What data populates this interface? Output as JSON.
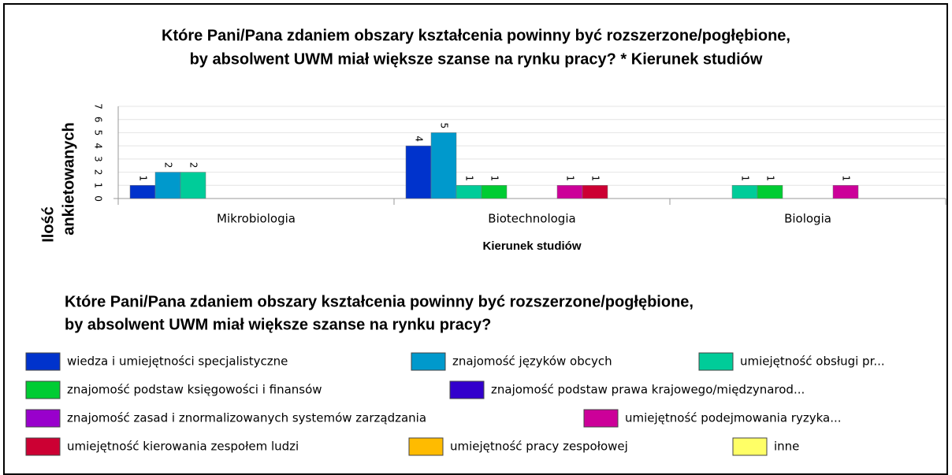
{
  "chart_data": {
    "type": "bar",
    "title": [
      "Które Pani/Pana zdaniem obszary kształcenia powinny być rozszerzone/pogłębione,",
      "by absolwent UWM miał większe szanse na rynku pracy? * Kierunek studiów"
    ],
    "y_label": [
      "Ilość",
      "ankietowanych"
    ],
    "x_label": "Kierunek studiów",
    "legend_title": [
      "Które Pani/Pana zdaniem obszary kształcenia powinny być rozszerzone/pogłębione,",
      "by absolwent UWM miał większe szanse na rynku pracy?"
    ],
    "categories": [
      "Mikrobiologia",
      "Biotechnologia",
      "Biologia"
    ],
    "series": [
      {
        "name": "wiedza i umiejętności specjalistyczne",
        "color": "#0033cc",
        "values": [
          1,
          4,
          0
        ]
      },
      {
        "name": "znajomość języków obcych",
        "color": "#0099cc",
        "values": [
          2,
          5,
          0
        ]
      },
      {
        "name": "umiejętność obsługi pr...",
        "color": "#00cc99",
        "values": [
          2,
          1,
          1
        ]
      },
      {
        "name": "znajomość  podstaw księgowości i finansów",
        "color": "#00cc33",
        "values": [
          0,
          1,
          1
        ]
      },
      {
        "name": "znajomość podstaw prawa krajowego/międzynarod...",
        "color": "#3300cc",
        "values": [
          0,
          0,
          0
        ]
      },
      {
        "name": "znajomość zasad i znormalizowanych systemów zarządzania",
        "color": "#9900cc",
        "values": [
          0,
          0,
          0
        ]
      },
      {
        "name": "umiejętność podejmowania ryzyka...",
        "color": "#cc0099",
        "values": [
          0,
          1,
          1
        ]
      },
      {
        "name": "umiejętność kierowania zespołem ludzi",
        "color": "#cc0033",
        "values": [
          0,
          1,
          0
        ]
      },
      {
        "name": "umiejętność pracy zespołowej",
        "color": "#ffbb00",
        "values": [
          0,
          0,
          0
        ]
      },
      {
        "name": "inne",
        "color": "#ffff66",
        "values": [
          0,
          0,
          0
        ]
      }
    ],
    "ylim": [
      0,
      7
    ],
    "yticks": [
      0,
      1,
      2,
      3,
      4,
      5,
      6,
      7
    ],
    "grid": true
  }
}
